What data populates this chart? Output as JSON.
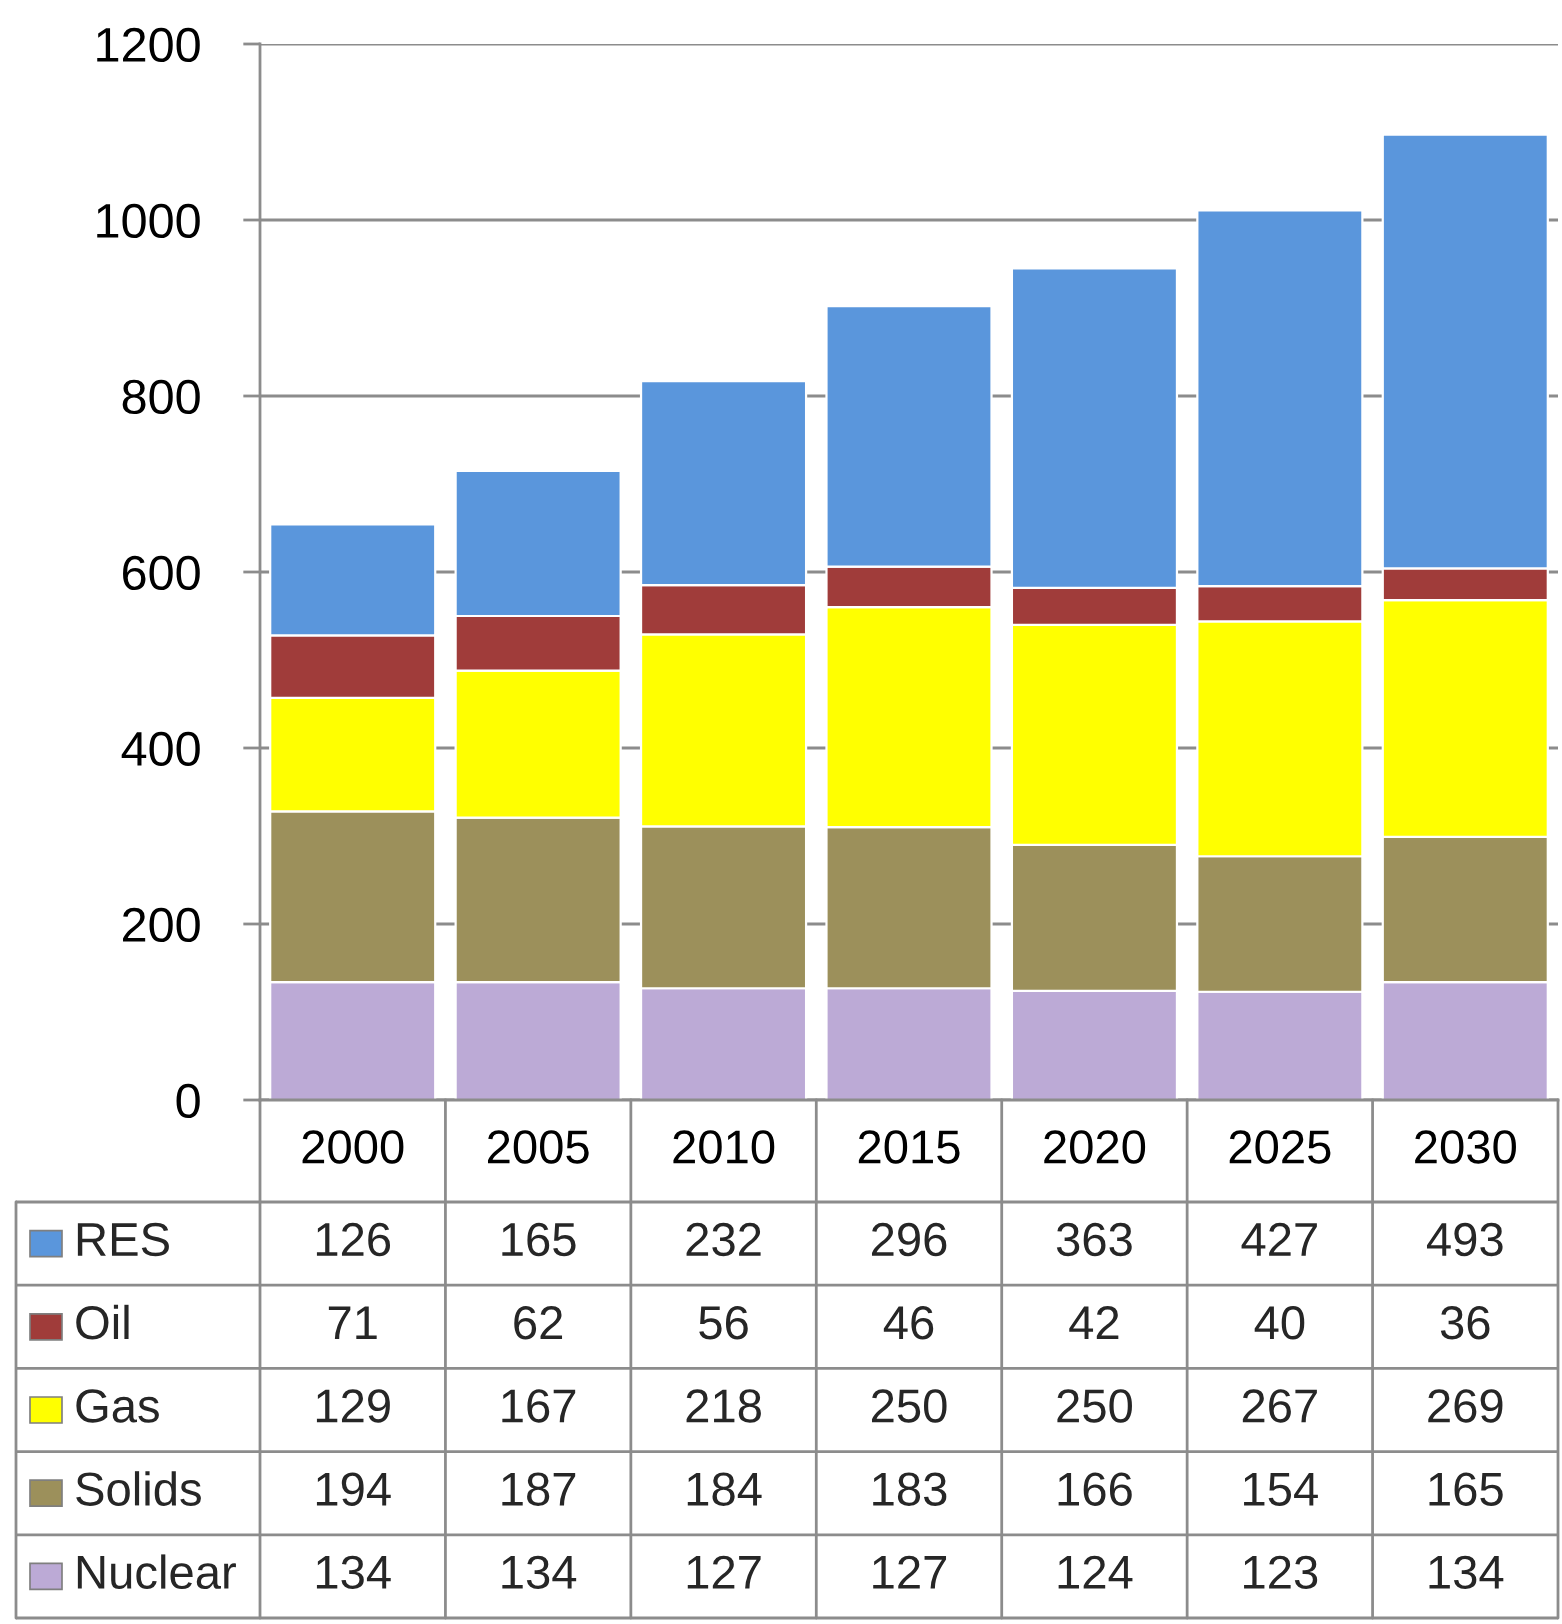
{
  "chart_data": {
    "type": "bar",
    "stacked": true,
    "categories": [
      "2000",
      "2005",
      "2010",
      "2015",
      "2020",
      "2025",
      "2030"
    ],
    "series": [
      {
        "name": "Nuclear",
        "color": "#bcaad6",
        "values": [
          134,
          134,
          127,
          127,
          124,
          123,
          134
        ]
      },
      {
        "name": "Solids",
        "color": "#9c905b",
        "values": [
          194,
          187,
          184,
          183,
          166,
          154,
          165
        ]
      },
      {
        "name": "Gas",
        "color": "#ffff00",
        "values": [
          129,
          167,
          218,
          250,
          250,
          267,
          269
        ]
      },
      {
        "name": "Oil",
        "color": "#a03c3a",
        "values": [
          71,
          62,
          56,
          46,
          42,
          40,
          36
        ]
      },
      {
        "name": "RES",
        "color": "#5a96dc",
        "values": [
          126,
          165,
          232,
          296,
          363,
          427,
          493
        ]
      }
    ],
    "ylim": [
      0,
      1200
    ],
    "yticks": [
      0,
      200,
      400,
      600,
      800,
      1000,
      1200
    ],
    "grid": "y",
    "legend": "bottom left",
    "data_labels": true
  }
}
